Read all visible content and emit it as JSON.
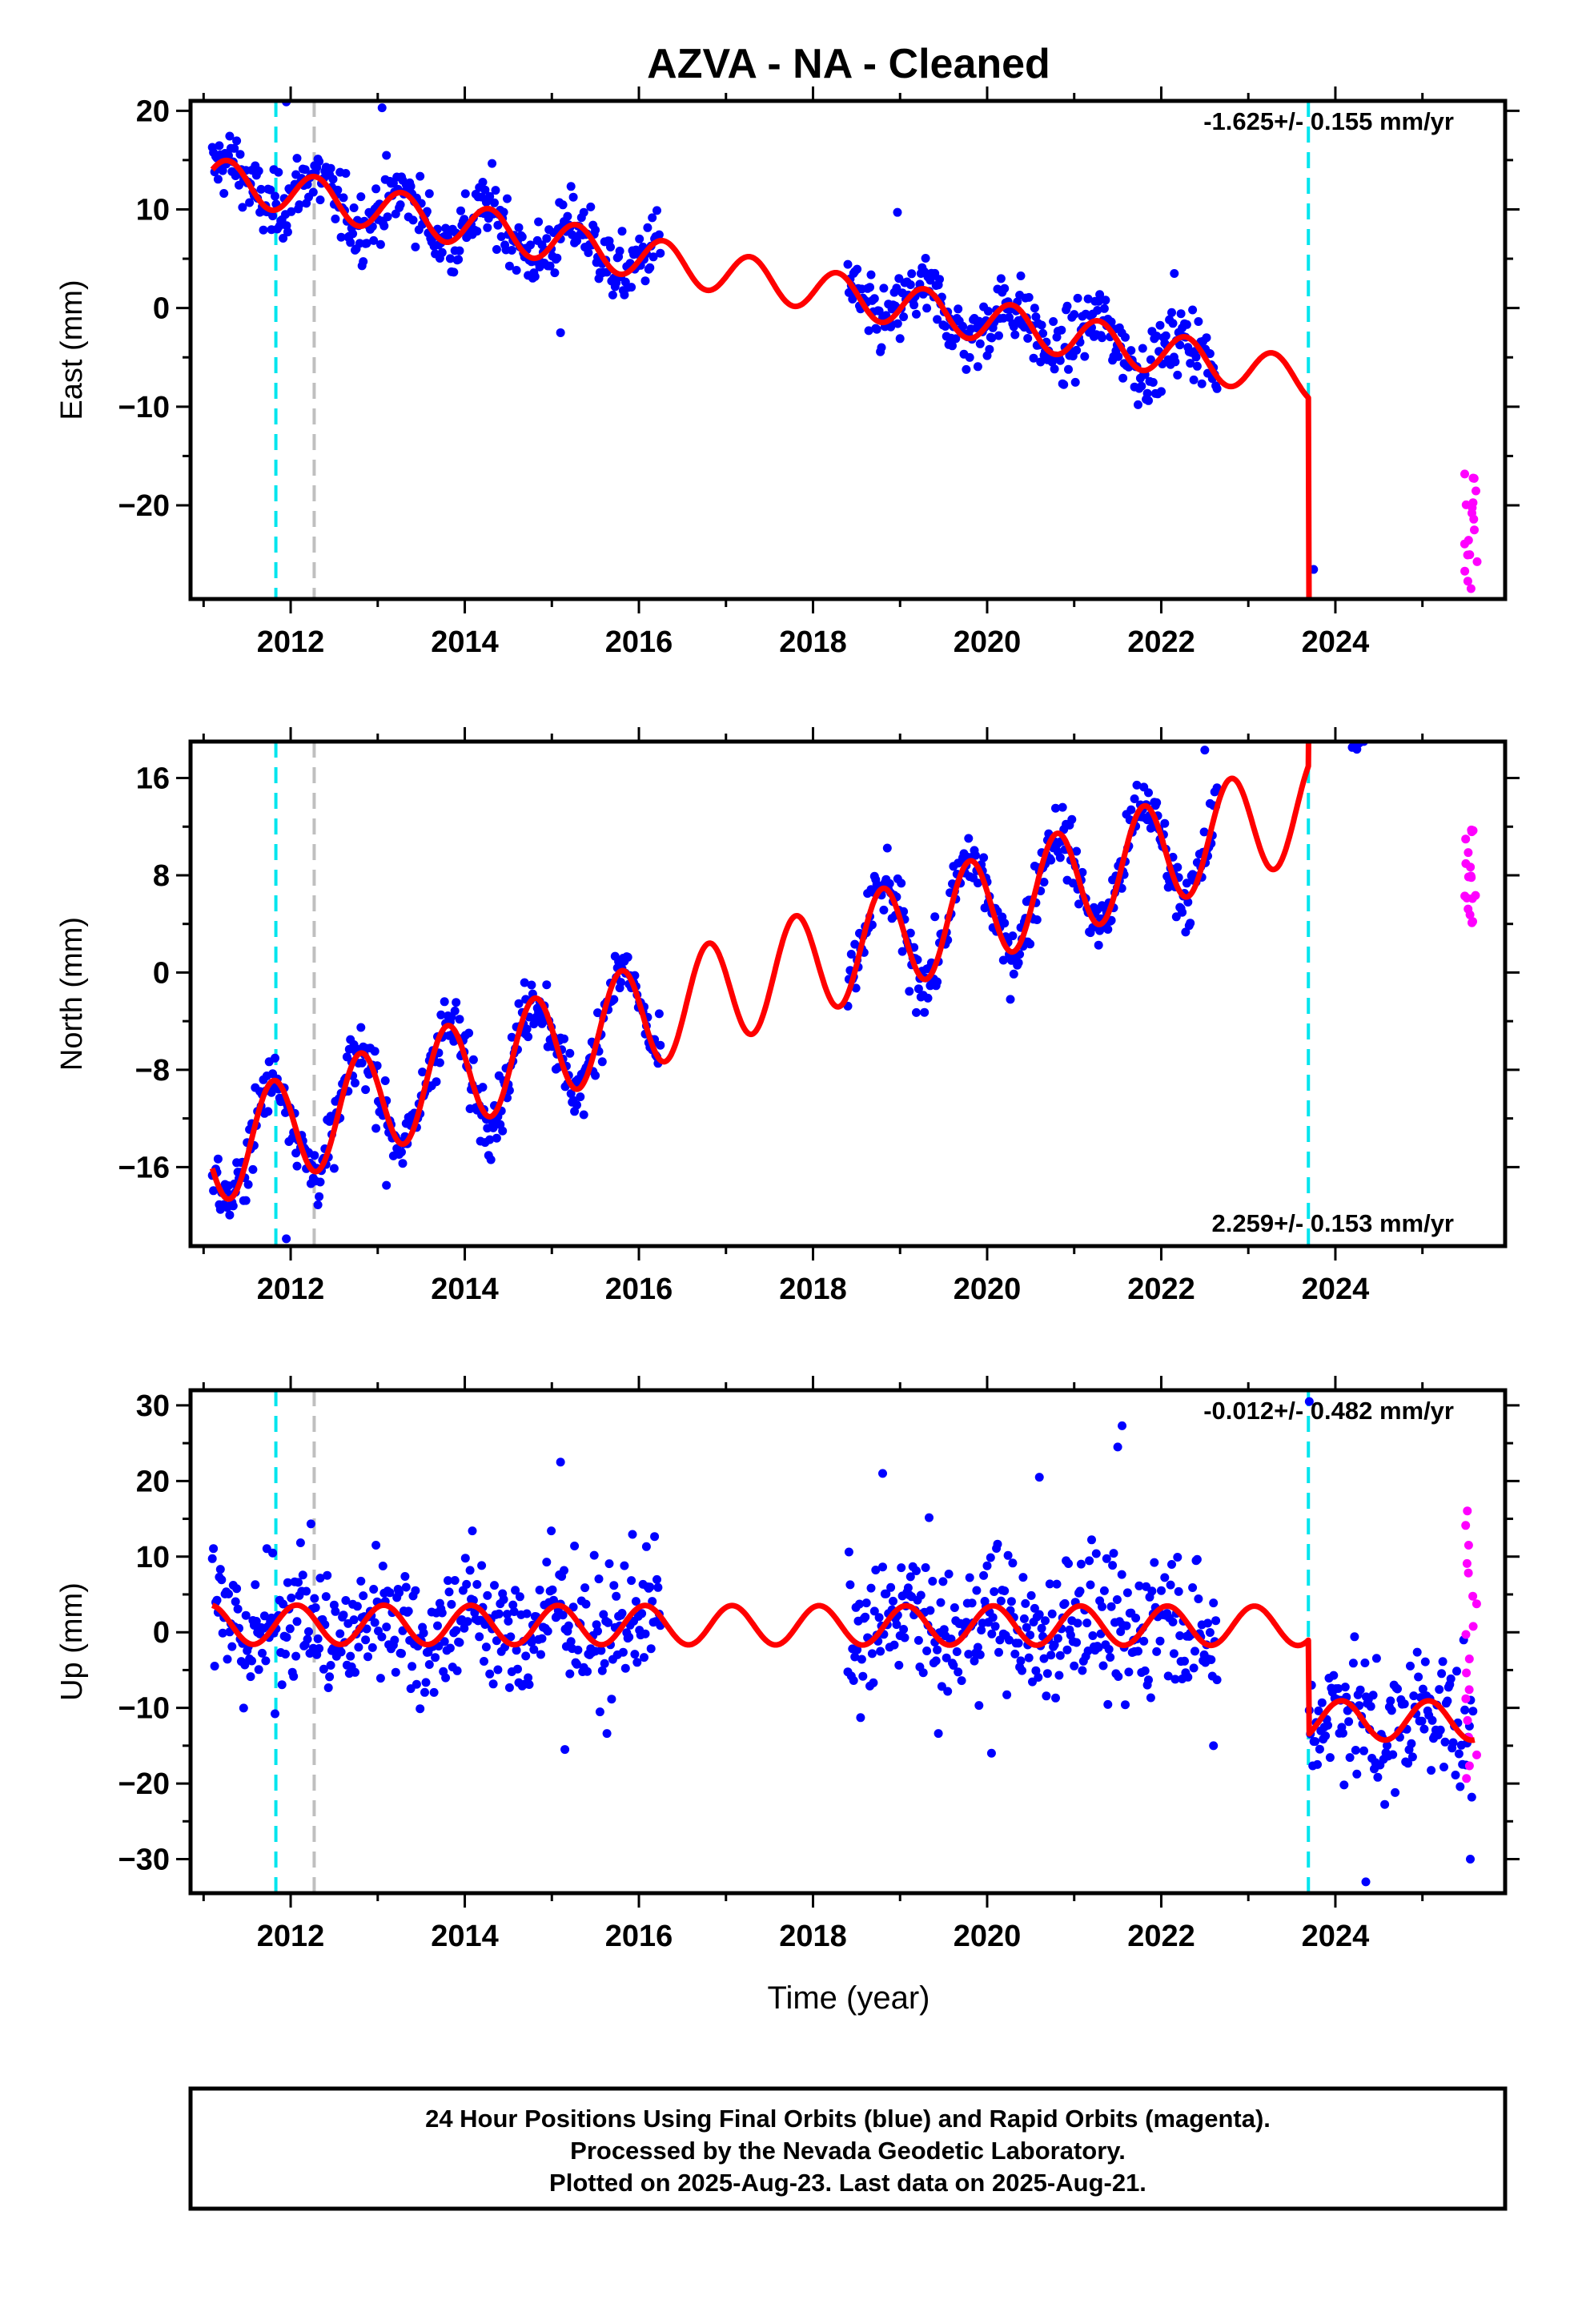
{
  "title": "AZVA  - NA - Cleaned",
  "xlabel": "Time (year)",
  "x_ticks": [
    "2012",
    "2014",
    "2016",
    "2018",
    "2020",
    "2022",
    "2024"
  ],
  "colors": {
    "final": "#0000ff",
    "rapid": "#ff00ff",
    "model": "#ff0000",
    "cyan": "#00e5ee",
    "gray": "#bfbfbf",
    "frame": "#000000"
  },
  "footer": {
    "line1": "24 Hour Positions Using Final Orbits (blue) and Rapid Orbits (magenta).",
    "line2": "Processed by the Nevada Geodetic Laboratory.",
    "line3": "Plotted on 2025-Aug-23. Last data on 2025-Aug-21."
  },
  "chart_data": [
    {
      "type": "scatter",
      "component": "east",
      "ylabel": "East (mm)",
      "rate_label": "-1.625+/- 0.155 mm/yr",
      "xlim": [
        2010.85,
        2025.95
      ],
      "ylim": [
        -29.5,
        21
      ],
      "y_ticks": [
        20,
        10,
        0,
        -10,
        -20
      ],
      "y_tick_labels": [
        "20",
        "10",
        "0",
        "−10",
        "−20"
      ],
      "vlines": [
        {
          "x": 2011.83,
          "color": "cyan"
        },
        {
          "x": 2012.27,
          "color": "gray"
        },
        {
          "x": 2023.69,
          "color": "cyan"
        }
      ],
      "model": {
        "rate_mm_yr": -1.625,
        "annual_amp_mm": 2.1,
        "annual_phase_year": 0.03,
        "segment_offsets": [
          13.3,
          13.3,
          -14.5
        ],
        "breaks": [
          2012.27,
          2023.69
        ]
      },
      "data_spans": [
        [
          2011.1,
          2016.25
        ],
        [
          2018.4,
          2022.65
        ],
        [
          2023.7,
          2025.58
        ]
      ],
      "final_scatter_mm": 1.7,
      "rapid_range": [
        2025.48,
        2025.63
      ],
      "rapid_y_range": [
        -28,
        -16.5
      ],
      "outliers": [
        {
          "x": 2011.95,
          "y": 20.9
        },
        {
          "x": 2013.05,
          "y": 20.3
        },
        {
          "x": 2018.97,
          "y": 9.7
        },
        {
          "x": 2022.15,
          "y": 3.5
        },
        {
          "x": 2015.1,
          "y": -2.5
        },
        {
          "x": 2023.75,
          "y": -26.5
        }
      ]
    },
    {
      "type": "scatter",
      "component": "north",
      "ylabel": "North (mm)",
      "rate_label": "2.259+/- 0.153 mm/yr",
      "xlim": [
        2010.85,
        2025.95
      ],
      "ylim": [
        -22.5,
        19
      ],
      "y_ticks": [
        16,
        8,
        0,
        -8,
        -16
      ],
      "y_tick_labels": [
        "16",
        "8",
        "0",
        "−8",
        "−16"
      ],
      "vlines": [
        {
          "x": 2011.83,
          "color": "cyan"
        },
        {
          "x": 2012.27,
          "color": "gray"
        },
        {
          "x": 2023.69,
          "color": "cyan"
        }
      ],
      "model": {
        "rate_mm_yr": 2.259,
        "annual_amp_mm": 4.3,
        "annual_phase_year": 0.55,
        "segment_offsets": [
          -15.0,
          -15.0,
          -6.0
        ],
        "breaks": [
          2012.27,
          2023.69
        ]
      },
      "data_spans": [
        [
          2011.1,
          2016.25
        ],
        [
          2018.4,
          2022.65
        ],
        [
          2023.7,
          2025.58
        ]
      ],
      "final_scatter_mm": 1.3,
      "rapid_range": [
        2025.48,
        2025.63
      ],
      "rapid_y_range": [
        3.5,
        12
      ],
      "outliers": [
        {
          "x": 2011.95,
          "y": -21.9
        },
        {
          "x": 2022.5,
          "y": 18.3
        },
        {
          "x": 2013.1,
          "y": -17.5
        },
        {
          "x": 2014.7,
          "y": -2.2
        }
      ]
    },
    {
      "type": "scatter",
      "component": "up",
      "ylabel": "Up (mm)",
      "rate_label": "-0.012+/- 0.482 mm/yr",
      "xlim": [
        2010.85,
        2025.95
      ],
      "ylim": [
        -34.5,
        32
      ],
      "y_ticks": [
        30,
        20,
        10,
        0,
        -10,
        -20,
        -30
      ],
      "y_tick_labels": [
        "30",
        "20",
        "10",
        "0",
        "−10",
        "−20",
        "−30"
      ],
      "vlines": [
        {
          "x": 2011.83,
          "color": "cyan"
        },
        {
          "x": 2012.27,
          "color": "gray"
        },
        {
          "x": 2023.69,
          "color": "cyan"
        }
      ],
      "model": {
        "rate_mm_yr": -0.012,
        "annual_amp_mm": 2.6,
        "annual_phase_year": 0.82,
        "segment_offsets": [
          1.0,
          1.0,
          -11.5
        ],
        "breaks": [
          2012.27,
          2023.69
        ]
      },
      "data_spans": [
        [
          2011.1,
          2016.25
        ],
        [
          2018.4,
          2022.65
        ],
        [
          2023.7,
          2025.58
        ]
      ],
      "final_scatter_mm": 4.5,
      "rapid_range": [
        2025.48,
        2025.63
      ],
      "rapid_y_range": [
        -20,
        16
      ],
      "outliers": [
        {
          "x": 2015.1,
          "y": 22.5
        },
        {
          "x": 2018.8,
          "y": 21.0
        },
        {
          "x": 2020.6,
          "y": 20.5
        },
        {
          "x": 2021.55,
          "y": 27.3
        },
        {
          "x": 2021.5,
          "y": 24.5
        },
        {
          "x": 2023.7,
          "y": 30.5
        },
        {
          "x": 2024.35,
          "y": -33.0
        },
        {
          "x": 2015.15,
          "y": -15.5
        },
        {
          "x": 2020.05,
          "y": -16.0
        },
        {
          "x": 2022.6,
          "y": -15.0
        },
        {
          "x": 2025.55,
          "y": -30.0
        }
      ]
    }
  ]
}
